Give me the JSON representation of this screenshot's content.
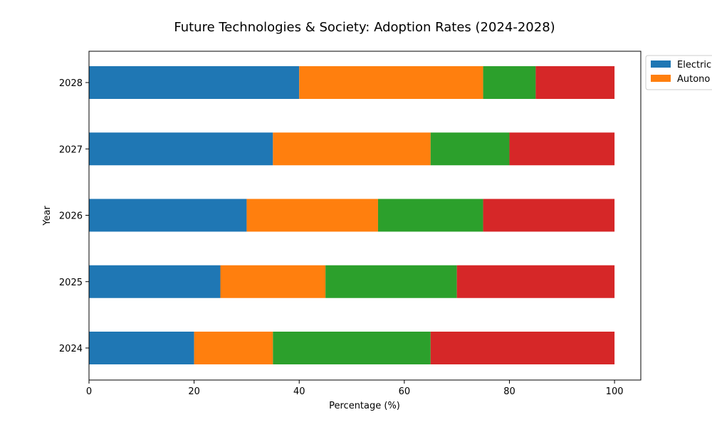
{
  "chart_data": {
    "type": "bar",
    "orientation": "horizontal",
    "stacked": true,
    "title": "Future Technologies & Society: Adoption Rates (2024-2028)",
    "xlabel": "Percentage (%)",
    "ylabel": "Year",
    "categories": [
      "2024",
      "2025",
      "2026",
      "2027",
      "2028"
    ],
    "xlim": [
      0,
      105
    ],
    "xticks": [
      0,
      20,
      40,
      60,
      80,
      100
    ],
    "grid": false,
    "legend_position": "top-right",
    "legend_visible_labels": [
      "Electric",
      "Autono"
    ],
    "series": [
      {
        "name": "Electric",
        "color": "#1f77b4",
        "values": [
          20,
          25,
          30,
          35,
          40
        ]
      },
      {
        "name": "Autono",
        "color": "#ff7f0e",
        "values": [
          15,
          20,
          25,
          30,
          35
        ]
      },
      {
        "color": "#2ca02c",
        "values": [
          30,
          25,
          20,
          15,
          10
        ]
      },
      {
        "color": "#d62728",
        "values": [
          35,
          30,
          25,
          20,
          15
        ]
      }
    ]
  }
}
